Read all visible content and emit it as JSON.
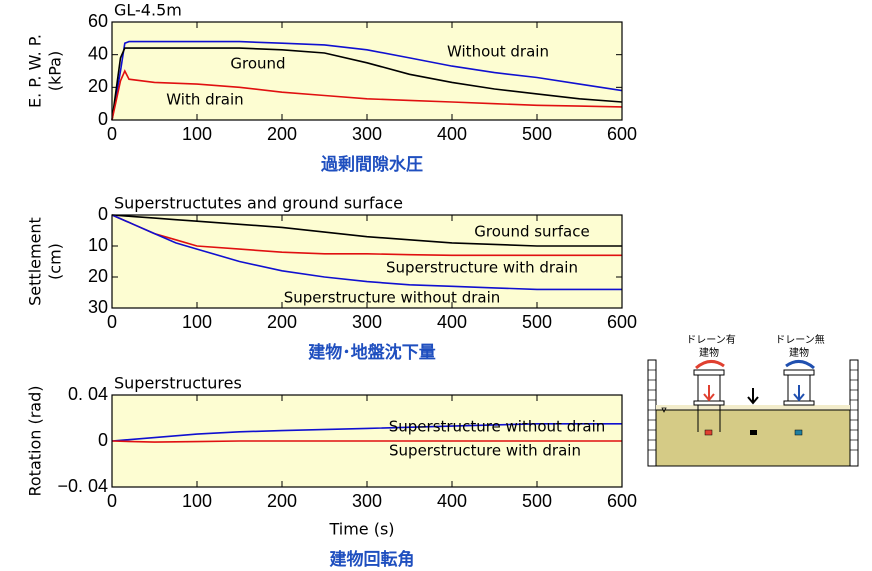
{
  "chart_data": [
    {
      "type": "line",
      "title": "GL-4.5m",
      "y_label": [
        "E. P. W. P.",
        "(kPa)"
      ],
      "caption": "過剰間隙水圧",
      "x": [
        0,
        10,
        15,
        20,
        50,
        100,
        150,
        200,
        250,
        300,
        350,
        400,
        450,
        500,
        550,
        600
      ],
      "series": [
        {
          "name": "Without drain",
          "color": "#1010d0",
          "values": [
            0,
            30,
            47,
            48,
            48,
            48,
            48,
            47,
            46,
            43,
            38,
            33,
            29,
            26,
            22,
            18
          ]
        },
        {
          "name": "Ground",
          "color": "#000000",
          "values": [
            0,
            38,
            44,
            44,
            44,
            44,
            44,
            43,
            41,
            35,
            28,
            23,
            19,
            16,
            13,
            11
          ]
        },
        {
          "name": "With drain",
          "color": "#e01010",
          "values": [
            0,
            24,
            30,
            25,
            23,
            22,
            20,
            17,
            15,
            13,
            12,
            11,
            10,
            9,
            8.5,
            8
          ]
        }
      ],
      "xlim": [
        0,
        600
      ],
      "xticks": [
        0,
        100,
        200,
        300,
        400,
        500,
        600
      ],
      "ylim": [
        0,
        60
      ],
      "yticks": [
        0,
        20,
        40,
        60
      ]
    },
    {
      "type": "line",
      "title": "Superstructutes and ground surface",
      "y_label": [
        "Settlement",
        "(cm)"
      ],
      "caption": "建物･地盤沈下量",
      "x": [
        0,
        25,
        50,
        75,
        100,
        150,
        200,
        250,
        300,
        350,
        400,
        450,
        500,
        550,
        600
      ],
      "series": [
        {
          "name": "Ground surface",
          "color": "#000000",
          "values": [
            0,
            0.5,
            1,
            1.5,
            2,
            3,
            4,
            5.5,
            7,
            8,
            9,
            9.5,
            10,
            10,
            10
          ]
        },
        {
          "name": "Superstructure with drain",
          "color": "#e01010",
          "values": [
            0,
            3,
            6,
            8,
            10,
            11,
            12,
            12.5,
            12.5,
            12.8,
            13,
            13,
            13,
            13,
            13
          ]
        },
        {
          "name": "Superstructure without drain",
          "color": "#1010d0",
          "values": [
            0,
            3,
            6,
            9,
            11,
            15,
            18,
            20,
            21.5,
            22.5,
            23,
            23.5,
            24,
            24,
            24
          ]
        }
      ],
      "xlim": [
        0,
        600
      ],
      "xticks": [
        0,
        100,
        200,
        300,
        400,
        500,
        600
      ],
      "ylim": [
        0,
        30
      ],
      "y_inverted": true,
      "yticks": [
        0,
        10,
        20,
        30
      ]
    },
    {
      "type": "line",
      "title": "Superstructures",
      "y_label": "Rotation (rad)",
      "x_label": "Time (s)",
      "caption": "建物回転角",
      "x": [
        0,
        50,
        100,
        150,
        200,
        300,
        400,
        500,
        600
      ],
      "series": [
        {
          "name": "Superstructure without drain",
          "color": "#1010d0",
          "values": [
            0,
            0.003,
            0.006,
            0.008,
            0.009,
            0.011,
            0.013,
            0.015,
            0.015
          ]
        },
        {
          "name": "Superstructure with drain",
          "color": "#e01010",
          "values": [
            0,
            -0.001,
            -0.0005,
            0,
            0,
            0,
            0,
            0,
            0
          ]
        }
      ],
      "xlim": [
        0,
        600
      ],
      "xticks": [
        0,
        100,
        200,
        300,
        400,
        500,
        600
      ],
      "ylim": [
        -0.04,
        0.04
      ],
      "yticks": [
        {
          "value": -0.04,
          "label": "−0. 04"
        },
        0,
        {
          "value": 0.04,
          "label": "0. 04"
        }
      ]
    }
  ],
  "diagram": {
    "labels": [
      "ドレーン有",
      "建物",
      "ドレーン無",
      "建物"
    ]
  }
}
